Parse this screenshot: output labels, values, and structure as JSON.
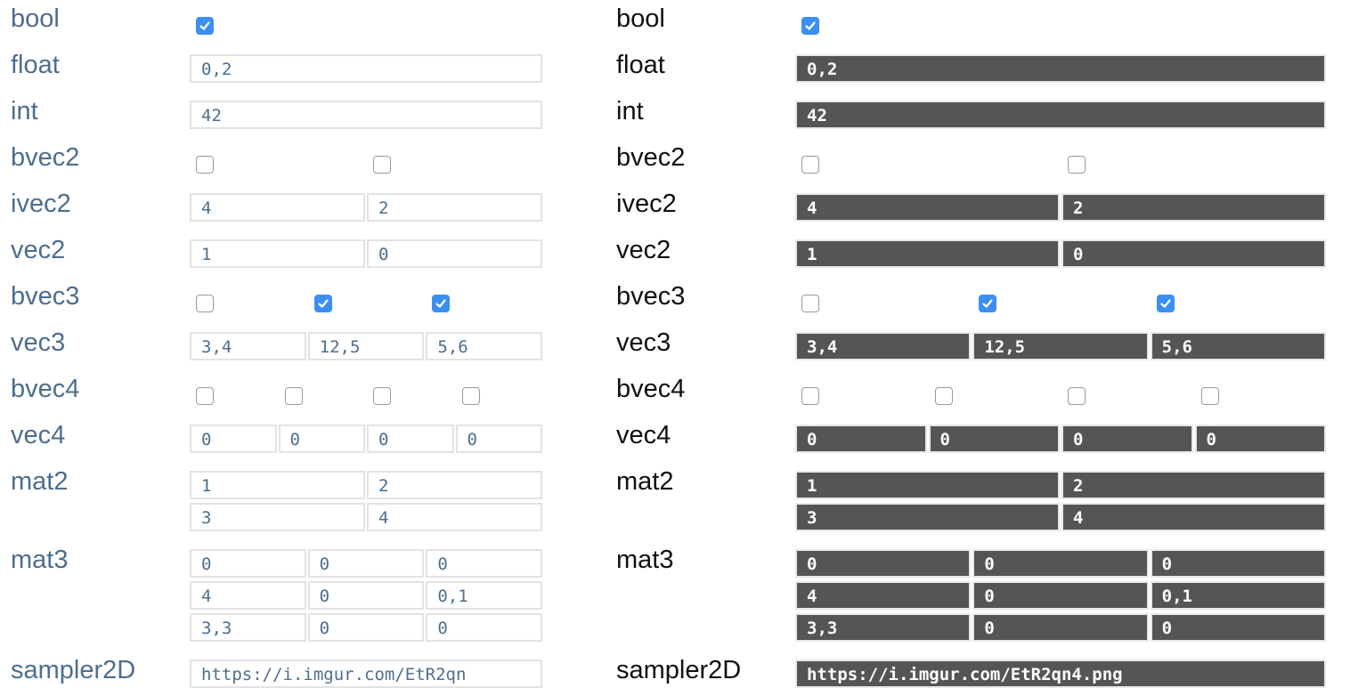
{
  "panels": [
    {
      "rows": [
        {
          "label": "bool",
          "checks": [
            true
          ]
        },
        {
          "label": "float",
          "fields": [
            [
              "0,2"
            ]
          ]
        },
        {
          "label": "int",
          "fields": [
            [
              "42"
            ]
          ]
        },
        {
          "label": "bvec2",
          "checks": [
            false,
            false
          ]
        },
        {
          "label": "ivec2",
          "fields": [
            [
              "4",
              "2"
            ]
          ]
        },
        {
          "label": "vec2",
          "fields": [
            [
              "1",
              "0"
            ]
          ]
        },
        {
          "label": "bvec3",
          "checks": [
            false,
            true,
            true
          ]
        },
        {
          "label": "vec3",
          "fields": [
            [
              "3,4",
              "12,5",
              "5,6"
            ]
          ]
        },
        {
          "label": "bvec4",
          "checks": [
            false,
            false,
            false,
            false
          ]
        },
        {
          "label": "vec4",
          "fields": [
            [
              "0",
              "0",
              "0",
              "0"
            ]
          ]
        },
        {
          "label": "mat2",
          "fields": [
            [
              "1",
              "2"
            ],
            [
              "3",
              "4"
            ]
          ]
        },
        {
          "label": "mat3",
          "fields": [
            [
              "0",
              "0",
              "0"
            ],
            [
              "4",
              "0",
              "0,1"
            ],
            [
              "3,3",
              "0",
              "0"
            ]
          ]
        },
        {
          "label": "sampler2D",
          "fields": [
            [
              "https://i.imgur.com/EtR2qn"
            ]
          ]
        }
      ]
    },
    {
      "rows": [
        {
          "label": "bool",
          "checks": [
            true
          ]
        },
        {
          "label": "float",
          "fields": [
            [
              "0,2"
            ]
          ]
        },
        {
          "label": "int",
          "fields": [
            [
              "42"
            ]
          ]
        },
        {
          "label": "bvec2",
          "checks": [
            false,
            false
          ]
        },
        {
          "label": "ivec2",
          "fields": [
            [
              "4",
              "2"
            ]
          ]
        },
        {
          "label": "vec2",
          "fields": [
            [
              "1",
              "0"
            ]
          ]
        },
        {
          "label": "bvec3",
          "checks": [
            false,
            true,
            true
          ]
        },
        {
          "label": "vec3",
          "fields": [
            [
              "3,4",
              "12,5",
              "5,6"
            ]
          ]
        },
        {
          "label": "bvec4",
          "checks": [
            false,
            false,
            false,
            false
          ]
        },
        {
          "label": "vec4",
          "fields": [
            [
              "0",
              "0",
              "0",
              "0"
            ]
          ]
        },
        {
          "label": "mat2",
          "fields": [
            [
              "1",
              "2"
            ],
            [
              "3",
              "4"
            ]
          ]
        },
        {
          "label": "mat3",
          "fields": [
            [
              "0",
              "0",
              "0"
            ],
            [
              "4",
              "0",
              "0,1"
            ],
            [
              "3,3",
              "0",
              "0"
            ]
          ]
        },
        {
          "label": "sampler2D",
          "fields": [
            [
              "https://i.imgur.com/EtR2qn4.png"
            ]
          ]
        }
      ]
    }
  ]
}
